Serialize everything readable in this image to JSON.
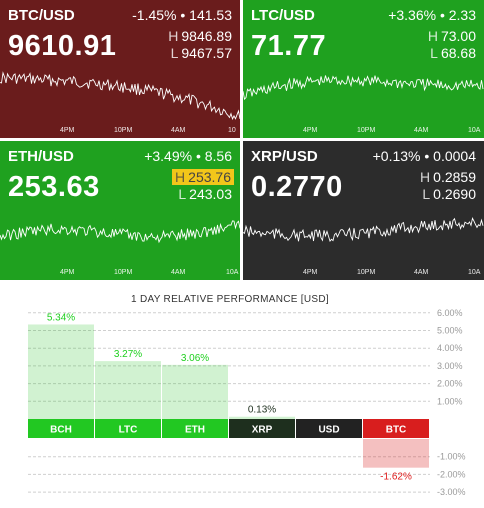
{
  "tiles": [
    {
      "pair": "BTC/USD",
      "change": "-1.45%",
      "delta": "141.53",
      "price": "9610.91",
      "high_label": "H",
      "high": "9846.89",
      "low_label": "L",
      "low": "9467.57",
      "bg": "#6a1c1c",
      "ticks": [
        "4PM",
        "10PM",
        "4AM",
        "10"
      ]
    },
    {
      "pair": "LTC/USD",
      "change": "+3.36%",
      "delta": "2.33",
      "price": "71.77",
      "high_label": "H",
      "high": "73.00",
      "low_label": "L",
      "low": "68.68",
      "bg": "#1fa11f",
      "ticks": [
        "4PM",
        "10PM",
        "4AM",
        "10A"
      ]
    },
    {
      "pair": "ETH/USD",
      "change": "+3.49%",
      "delta": "8.56",
      "price": "253.63",
      "high_label": "H",
      "high": "253.76",
      "low_label": "L",
      "low": "243.03",
      "bg": "#1fa11f",
      "high_highlight": true,
      "ticks": [
        "4PM",
        "10PM",
        "4AM",
        "10A"
      ]
    },
    {
      "pair": "XRP/USD",
      "change": "+0.13%",
      "delta": "0.0004",
      "price": "0.2770",
      "high_label": "H",
      "high": "0.2859",
      "low_label": "L",
      "low": "0.2690",
      "bg": "#2c2c2c",
      "ticks": [
        "4PM",
        "10PM",
        "4AM",
        "10A"
      ]
    }
  ],
  "separator": "•",
  "performance": {
    "title": "1 DAY RELATIVE PERFORMANCE  [USD]",
    "y_ticks": [
      "6.00%",
      "5.00%",
      "4.00%",
      "3.00%",
      "2.00%",
      "1.00%",
      "-1.00%",
      "-2.00%",
      "-3.00%"
    ],
    "positive_color": "#2fc52f",
    "negative_color": "#d81e1e",
    "chart_data": {
      "type": "bar",
      "categories": [
        "BCH",
        "LTC",
        "ETH",
        "XRP",
        "USD",
        "BTC"
      ],
      "values": [
        5.34,
        3.27,
        3.06,
        0.13,
        0,
        -1.62
      ],
      "value_labels": [
        "5.34%",
        "3.27%",
        "3.06%",
        "0.13%",
        "",
        "-1.62%"
      ],
      "label_colors": [
        "#1ed01e",
        "#1ed01e",
        "#1ed01e",
        "#1e2f1e",
        "#222222",
        "#e01e1e"
      ],
      "ylim": [
        -3,
        6
      ]
    }
  }
}
